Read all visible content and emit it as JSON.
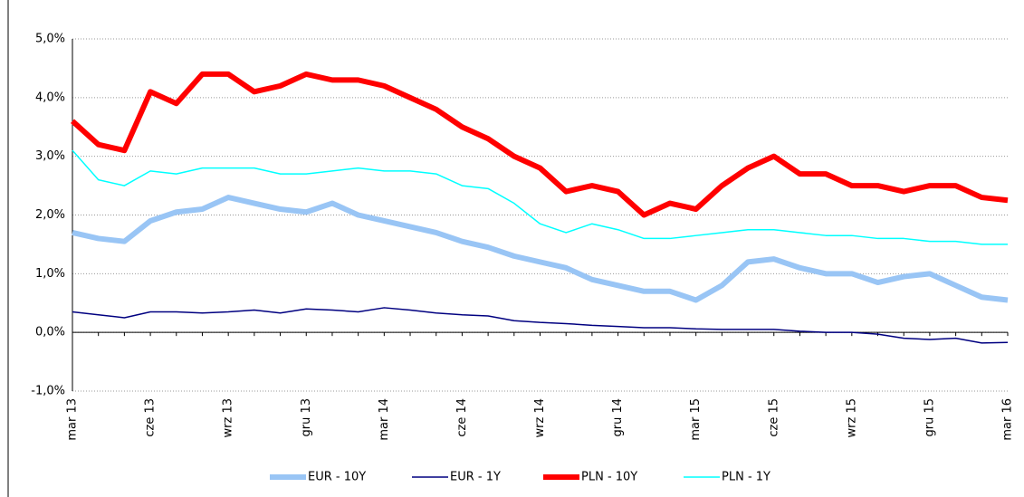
{
  "chart_data": {
    "type": "line",
    "categories": [
      "mar 13",
      null,
      null,
      "cze 13",
      null,
      null,
      "wrz 13",
      null,
      null,
      "gru 13",
      null,
      null,
      "mar 14",
      null,
      null,
      "cze 14",
      null,
      null,
      "wrz 14",
      null,
      null,
      "gru 14",
      null,
      null,
      "mar 15",
      null,
      null,
      "cze 15",
      null,
      null,
      "wrz 15",
      null,
      null,
      "gru 15",
      null,
      null,
      "mar 16"
    ],
    "ylim": [
      -1,
      5
    ],
    "yticks": [
      {
        "value": -1,
        "label": "-1,0%"
      },
      {
        "value": 0,
        "label": "0,0%"
      },
      {
        "value": 1,
        "label": "1,0%"
      },
      {
        "value": 2,
        "label": "2,0%"
      },
      {
        "value": 3,
        "label": "3,0%"
      },
      {
        "value": 4,
        "label": "4,0%"
      },
      {
        "value": 5,
        "label": "5,0%"
      }
    ],
    "grid": true,
    "legend": "bottom",
    "series": [
      {
        "name": "EUR - 10Y",
        "color": "#99c5f5",
        "line_width": 6,
        "values": [
          1.7,
          1.6,
          1.55,
          1.9,
          2.05,
          2.1,
          2.3,
          2.2,
          2.1,
          2.05,
          2.2,
          2.0,
          1.9,
          1.8,
          1.7,
          1.55,
          1.45,
          1.3,
          1.2,
          1.1,
          0.9,
          0.8,
          0.7,
          0.7,
          0.55,
          0.8,
          1.2,
          1.25,
          1.1,
          1.0,
          1.0,
          0.85,
          0.95,
          1.0,
          0.8,
          0.6,
          0.55
        ]
      },
      {
        "name": "EUR - 1Y",
        "color": "#000080",
        "line_width": 1.5,
        "values": [
          0.35,
          0.3,
          0.25,
          0.35,
          0.35,
          0.33,
          0.35,
          0.38,
          0.33,
          0.4,
          0.38,
          0.35,
          0.42,
          0.38,
          0.33,
          0.3,
          0.28,
          0.2,
          0.17,
          0.15,
          0.12,
          0.1,
          0.08,
          0.08,
          0.06,
          0.05,
          0.05,
          0.05,
          0.02,
          0.0,
          0.0,
          -0.03,
          -0.1,
          -0.12,
          -0.1,
          -0.18,
          -0.17
        ]
      },
      {
        "name": "PLN - 10Y",
        "color": "#ff0000",
        "line_width": 6,
        "values": [
          3.6,
          3.2,
          3.1,
          4.1,
          3.9,
          4.4,
          4.4,
          4.1,
          4.2,
          4.4,
          4.3,
          4.3,
          4.2,
          4.0,
          3.8,
          3.5,
          3.3,
          3.0,
          2.8,
          2.4,
          2.5,
          2.4,
          2.0,
          2.2,
          2.1,
          2.5,
          2.8,
          3.0,
          2.7,
          2.7,
          2.5,
          2.5,
          2.4,
          2.5,
          2.5,
          2.3,
          2.25
        ]
      },
      {
        "name": "PLN - 1Y",
        "color": "#00ffff",
        "line_width": 1.5,
        "values": [
          3.1,
          2.6,
          2.5,
          2.75,
          2.7,
          2.8,
          2.8,
          2.8,
          2.7,
          2.7,
          2.75,
          2.8,
          2.75,
          2.75,
          2.7,
          2.5,
          2.45,
          2.2,
          1.85,
          1.7,
          1.85,
          1.75,
          1.6,
          1.6,
          1.65,
          1.7,
          1.75,
          1.75,
          1.7,
          1.65,
          1.65,
          1.6,
          1.6,
          1.55,
          1.55,
          1.5,
          1.5
        ]
      }
    ]
  }
}
